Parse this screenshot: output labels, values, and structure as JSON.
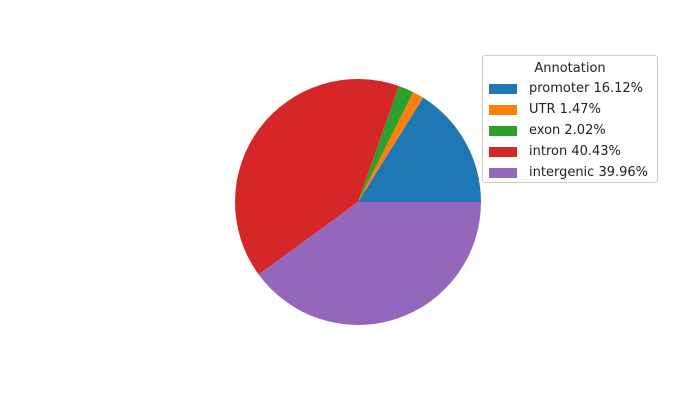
{
  "chart_data": {
    "type": "pie",
    "legend_title": "Annotation",
    "legend_placement": "top-right",
    "start_angle": 0,
    "direction": "counterclockwise",
    "slices": [
      {
        "label": "promoter 16.12%",
        "category": "promoter",
        "value": 16.12,
        "color": "#1f77b4"
      },
      {
        "label": "UTR 1.47%",
        "category": "UTR",
        "value": 1.47,
        "color": "#ff7f0e"
      },
      {
        "label": "exon 2.02%",
        "category": "exon",
        "value": 2.02,
        "color": "#2ca02c"
      },
      {
        "label": "intron 40.43%",
        "category": "intron",
        "value": 40.43,
        "color": "#d62728"
      },
      {
        "label": "intergenic 39.96%",
        "category": "intergenic",
        "value": 39.96,
        "color": "#9467bd"
      }
    ]
  }
}
